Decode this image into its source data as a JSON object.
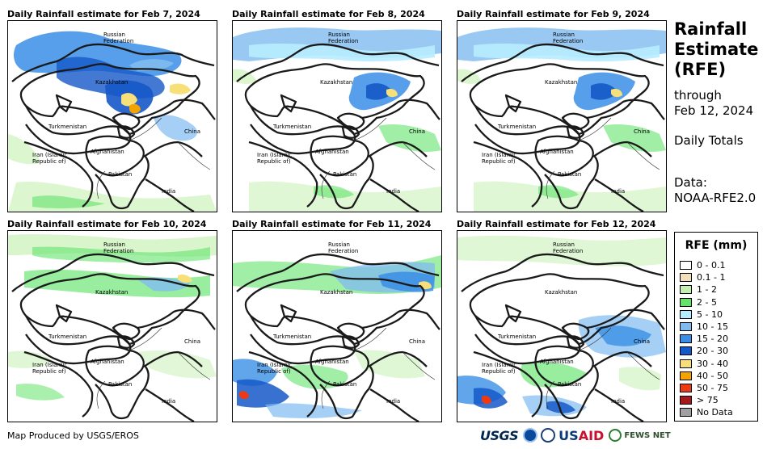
{
  "panels": [
    {
      "title": "Daily Rainfall estimate for Feb 7, 2024",
      "intensity": "heavy"
    },
    {
      "title": "Daily Rainfall estimate for Feb 8, 2024",
      "intensity": "moderate"
    },
    {
      "title": "Daily Rainfall estimate for Feb 9, 2024",
      "intensity": "moderate"
    },
    {
      "title": "Daily Rainfall estimate for Feb 10, 2024",
      "intensity": "light"
    },
    {
      "title": "Daily Rainfall estimate for Feb 11, 2024",
      "intensity": "moderate-south"
    },
    {
      "title": "Daily Rainfall estimate for Feb 12, 2024",
      "intensity": "south"
    }
  ],
  "map_labels": {
    "russia": "Russian Federation",
    "russia_line1": "Russian",
    "russia_line2": "Federation",
    "kazakhstan": "Kazakhstan",
    "turkmenistan": "Turkmenistan",
    "china": "China",
    "iran_line1": "Iran  (Islamic",
    "iran_line2": "Republic of)",
    "afghanistan": "Afghanistan",
    "pakistan": "Pakistan",
    "india": "India"
  },
  "side": {
    "title_line1": "Rainfall",
    "title_line2": "Estimate",
    "title_line3": "(RFE)",
    "through": "through",
    "date": "Feb 12, 2024",
    "totals": "Daily Totals",
    "data_label": "Data:",
    "data_source": "NOAA-RFE2.0"
  },
  "legend": {
    "title": "RFE (mm)",
    "items": [
      {
        "label": "0 - 0.1",
        "color": "#ffffff"
      },
      {
        "label": "0.1 - 1",
        "color": "#f3dfbc"
      },
      {
        "label": "1 - 2",
        "color": "#c4f0b0"
      },
      {
        "label": "2 - 5",
        "color": "#62e36a"
      },
      {
        "label": "5 - 10",
        "color": "#b7ecff"
      },
      {
        "label": "10 - 15",
        "color": "#7fbbf0"
      },
      {
        "label": "15 - 20",
        "color": "#3a8ee6"
      },
      {
        "label": "20 - 30",
        "color": "#1558c8"
      },
      {
        "label": "30 - 40",
        "color": "#f7e07a"
      },
      {
        "label": "40 - 50",
        "color": "#f5a300"
      },
      {
        "label": "50 - 75",
        "color": "#ee3a12"
      },
      {
        "label": "> 75",
        "color": "#a6191b"
      },
      {
        "label": "No Data",
        "color": "#a0a0a0"
      }
    ]
  },
  "footer": {
    "credit": "Map Produced by USGS/EROS",
    "logo_usgs": "USGS",
    "logo_usaid_a": "US",
    "logo_usaid_b": "AID",
    "logo_fews": "FEWS NET"
  }
}
